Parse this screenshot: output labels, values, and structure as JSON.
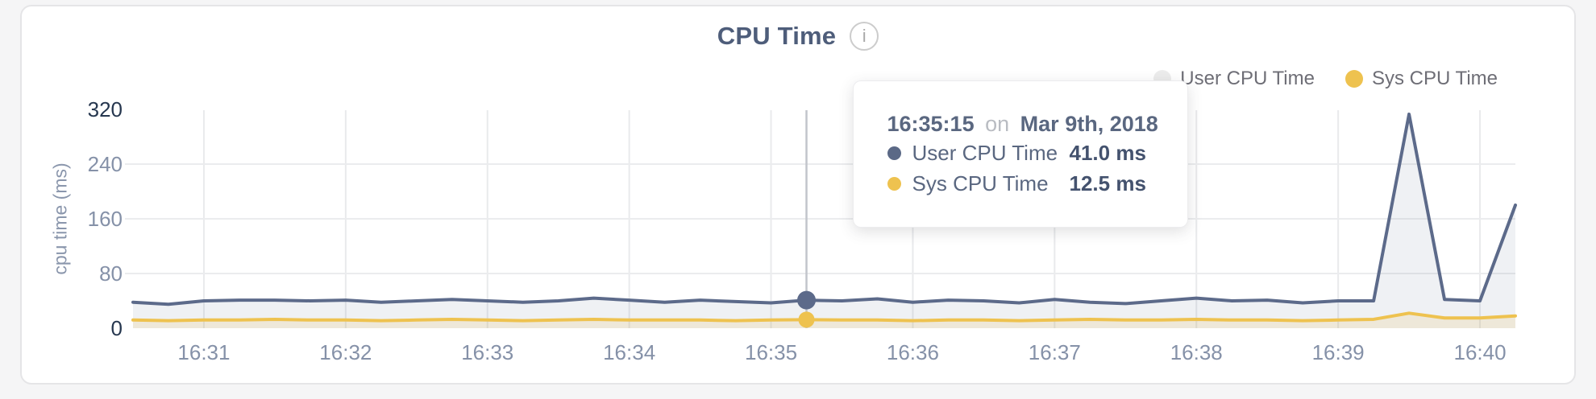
{
  "header": {
    "title": "CPU Time",
    "info_icon": "i"
  },
  "legend": {
    "items": [
      {
        "label": "User CPU Time",
        "dot_color": "#ececec"
      },
      {
        "label": "Sys CPU Time",
        "dot_color": "#eec24f"
      }
    ]
  },
  "tooltip": {
    "time": "16:35:15",
    "conj": "on",
    "date": "Mar 9th, 2018",
    "hover_index": 19,
    "rows": [
      {
        "label": "User CPU Time",
        "value": "41.0 ms",
        "color": "#5b6986"
      },
      {
        "label": "Sys CPU Time",
        "value": "12.5 ms",
        "color": "#eec24f"
      }
    ]
  },
  "chart_data": {
    "type": "area",
    "title": "CPU Time",
    "ylabel": "cpu time (ms)",
    "xlabel": "",
    "ylim": [
      0,
      320
    ],
    "yticks": [
      0,
      80,
      160,
      240,
      320
    ],
    "xticks": [
      {
        "label": "16:31",
        "index": 2
      },
      {
        "label": "16:32",
        "index": 6
      },
      {
        "label": "16:33",
        "index": 10
      },
      {
        "label": "16:34",
        "index": 14
      },
      {
        "label": "16:35",
        "index": 18
      },
      {
        "label": "16:36",
        "index": 22
      },
      {
        "label": "16:37",
        "index": 26
      },
      {
        "label": "16:38",
        "index": 30
      },
      {
        "label": "16:39",
        "index": 34
      },
      {
        "label": "16:40",
        "index": 38
      }
    ],
    "grid": true,
    "legend_position": "top-right",
    "x_times": [
      "16:30:30",
      "16:30:45",
      "16:31:00",
      "16:31:15",
      "16:31:30",
      "16:31:45",
      "16:32:00",
      "16:32:15",
      "16:32:30",
      "16:32:45",
      "16:33:00",
      "16:33:15",
      "16:33:30",
      "16:33:45",
      "16:34:00",
      "16:34:15",
      "16:34:30",
      "16:34:45",
      "16:35:00",
      "16:35:15",
      "16:35:30",
      "16:35:45",
      "16:36:00",
      "16:36:15",
      "16:36:30",
      "16:36:45",
      "16:37:00",
      "16:37:15",
      "16:37:30",
      "16:37:45",
      "16:38:00",
      "16:38:15",
      "16:38:30",
      "16:38:45",
      "16:39:00",
      "16:39:15",
      "16:39:30",
      "16:39:45",
      "16:40:00",
      "16:40:15"
    ],
    "series": [
      {
        "name": "User CPU Time",
        "color": "#5c6a8a",
        "fill": "rgba(99,113,143,0.10)",
        "values": [
          38,
          35,
          40,
          41,
          41,
          40,
          41,
          38,
          40,
          42,
          40,
          38,
          40,
          44,
          41,
          38,
          41,
          39,
          37,
          41,
          40,
          43,
          38,
          41,
          40,
          37,
          42,
          38,
          36,
          40,
          44,
          40,
          41,
          37,
          40,
          40,
          313,
          42,
          40,
          180
        ]
      },
      {
        "name": "Sys CPU Time",
        "color": "#eec24f",
        "fill": "rgba(232,195,94,0.18)",
        "values": [
          12,
          11,
          12,
          12,
          13,
          12,
          12,
          11,
          12,
          13,
          12,
          11,
          12,
          13,
          12,
          12,
          12,
          11,
          12,
          12.5,
          12,
          12,
          11,
          12,
          12,
          11,
          12,
          13,
          12,
          12,
          13,
          12,
          12,
          11,
          12,
          13,
          22,
          15,
          15,
          18
        ]
      }
    ]
  }
}
